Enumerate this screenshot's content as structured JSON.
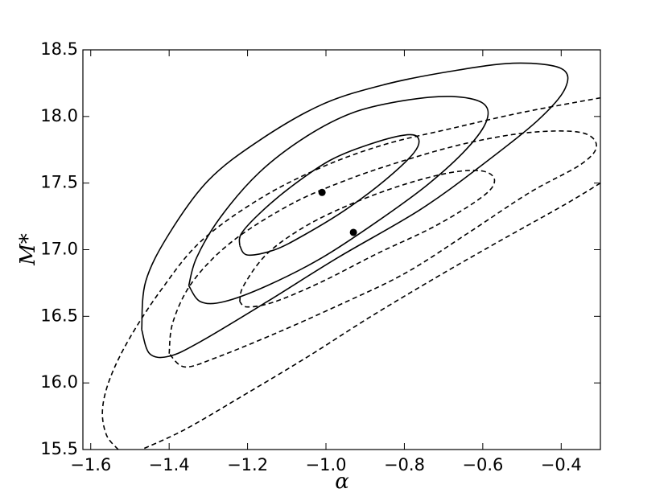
{
  "chart_data": {
    "type": "contour",
    "xlabel": "α",
    "ylabel": "M*",
    "xlim": [
      -1.62,
      -0.3
    ],
    "ylim": [
      15.5,
      18.5
    ],
    "xticks": [
      {
        "value": -1.6,
        "label": "−1.6"
      },
      {
        "value": -1.4,
        "label": "−1.4"
      },
      {
        "value": -1.2,
        "label": "−1.2"
      },
      {
        "value": -1.0,
        "label": "−1.0"
      },
      {
        "value": -0.8,
        "label": "−0.8"
      },
      {
        "value": -0.6,
        "label": "−0.6"
      },
      {
        "value": -0.4,
        "label": "−0.4"
      }
    ],
    "yticks": [
      15.5,
      {
        "value": 16,
        "label": "16.0"
      },
      16.5,
      {
        "value": 17,
        "label": "17.0"
      },
      17.5,
      {
        "value": 18,
        "label": "18.0"
      },
      18.5
    ],
    "color": "#000000",
    "series": [
      {
        "dash": false,
        "x": [
          -1.22,
          -1.216,
          -1.17,
          -1.09,
          -0.99,
          -0.89,
          -0.8,
          -0.765,
          -0.775,
          -0.85,
          -0.95,
          -1.05,
          -1.13,
          -1.2,
          -1.22
        ],
        "values": [
          17.03,
          17.12,
          17.27,
          17.47,
          17.67,
          17.79,
          17.86,
          17.84,
          17.73,
          17.52,
          17.3,
          17.12,
          17.0,
          16.96,
          17.03
        ]
      },
      {
        "dash": false,
        "x": [
          -1.35,
          -1.33,
          -1.27,
          -1.17,
          -1.05,
          -0.93,
          -0.8,
          -0.68,
          -0.6,
          -0.59,
          -0.64,
          -0.74,
          -0.87,
          -1.01,
          -1.15,
          -1.26,
          -1.32,
          -1.35
        ],
        "values": [
          16.73,
          16.94,
          17.24,
          17.58,
          17.85,
          18.03,
          18.12,
          18.15,
          18.1,
          17.97,
          17.76,
          17.49,
          17.21,
          16.94,
          16.73,
          16.61,
          16.61,
          16.73
        ]
      },
      {
        "dash": false,
        "x": [
          -1.47,
          -1.46,
          -1.4,
          -1.3,
          -1.17,
          -1.01,
          -0.85,
          -0.68,
          -0.52,
          -0.4,
          -0.39,
          -0.46,
          -0.6,
          -0.76,
          -0.97,
          -1.15,
          -1.32,
          -1.4,
          -1.45,
          -1.47
        ],
        "values": [
          16.4,
          16.76,
          17.12,
          17.52,
          17.82,
          18.09,
          18.24,
          18.34,
          18.4,
          18.36,
          18.21,
          17.97,
          17.64,
          17.3,
          16.94,
          16.61,
          16.31,
          16.2,
          16.22,
          16.4
        ]
      },
      {
        "dash": true,
        "x": [
          -1.22,
          -1.21,
          -1.15,
          -1.05,
          -0.93,
          -0.8,
          -0.68,
          -0.6,
          -0.57,
          -0.6,
          -0.72,
          -0.87,
          -1.01,
          -1.13,
          -1.2,
          -1.22
        ],
        "values": [
          16.61,
          16.73,
          16.97,
          17.18,
          17.35,
          17.49,
          17.58,
          17.59,
          17.52,
          17.4,
          17.18,
          16.97,
          16.76,
          16.61,
          16.57,
          16.61
        ]
      },
      {
        "dash": true,
        "x": [
          -1.4,
          -1.39,
          -1.34,
          -1.24,
          -1.09,
          -0.95,
          -0.8,
          -0.64,
          -0.48,
          -0.35,
          -0.31,
          -0.35,
          -0.48,
          -0.64,
          -0.8,
          -0.97,
          -1.13,
          -1.28,
          -1.36,
          -1.4
        ],
        "values": [
          16.22,
          16.46,
          16.76,
          17.06,
          17.34,
          17.52,
          17.67,
          17.8,
          17.88,
          17.88,
          17.78,
          17.64,
          17.43,
          17.12,
          16.82,
          16.58,
          16.37,
          16.19,
          16.12,
          16.22
        ]
      },
      {
        "dash": true,
        "x": [
          -1.53,
          -1.56,
          -1.57,
          -1.55,
          -1.5,
          -1.42,
          -1.32,
          -1.17,
          -1.01,
          -0.85,
          -0.68,
          -0.5,
          -0.3,
          null,
          -0.3,
          -0.39,
          -0.56,
          -0.72,
          -0.89,
          -1.05,
          -1.22,
          -1.36,
          -1.47
        ],
        "values": [
          15.5,
          15.61,
          15.8,
          16.04,
          16.34,
          16.7,
          17.06,
          17.38,
          17.62,
          17.79,
          17.91,
          18.03,
          18.14,
          null,
          17.5,
          17.34,
          17.06,
          16.79,
          16.49,
          16.19,
          15.89,
          15.65,
          15.5
        ]
      }
    ],
    "points": {
      "x": [
        -1.01,
        -0.93
      ],
      "values": [
        17.43,
        17.13
      ]
    }
  }
}
